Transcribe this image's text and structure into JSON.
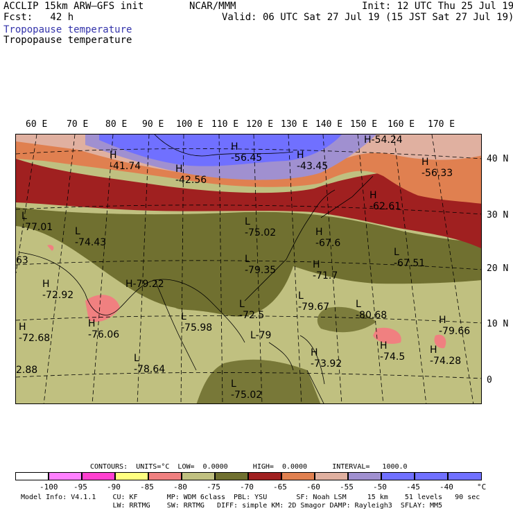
{
  "header": {
    "title_left": "ACCLIP 15km ARW–GFS init",
    "fcst": "Fcst:   42 h",
    "org": "NCAR/MMM",
    "init": "Init: 12 UTC Thu 25 Jul 19",
    "valid": "Valid: 06 UTC Sat 27 Jul 19 (15 JST Sat 27 Jul 19)",
    "field_blue": "Tropopause temperature",
    "field_black": "Tropopause temperature"
  },
  "lon_labels": [
    "60 E",
    "70 E",
    "80 E",
    "90 E",
    "100 E",
    "110 E",
    "120 E",
    "130 E",
    "140 E",
    "150 E",
    "160 E",
    "170 E"
  ],
  "lat_labels": [
    "40 N",
    "30 N",
    "20 N",
    "10 N",
    "0"
  ],
  "colors": {
    "c_100": "#ffffff",
    "c_95": "#ff80ff",
    "c_90": "#ff40d0",
    "c_85": "#ffff80",
    "c_80": "#f08080",
    "c_75": "#c0c080",
    "c_70": "#707030",
    "c_65": "#a02020",
    "c_60": "#e08050",
    "c_55": "#e0b0a0",
    "c_50": "#a090d0",
    "c_45": "#7070ff",
    "c_40": "#7070ff"
  },
  "map_labels": [
    {
      "sym": "H",
      "val": "-56.45"
    },
    {
      "sym": "H",
      "val": "-54.24"
    },
    {
      "sym": "H",
      "val": "-41.74"
    },
    {
      "sym": "H",
      "val": "-42.56"
    },
    {
      "sym": "H",
      "val": "-43.45"
    },
    {
      "sym": "H",
      "val": "-56.33"
    },
    {
      "sym": "H",
      "val": "-62.61"
    },
    {
      "sym": "L",
      "val": "-77.01"
    },
    {
      "sym": "L",
      "val": "-74.43"
    },
    {
      "sym": "L",
      "val": "-75.02"
    },
    {
      "sym": "H",
      "val": "-67.6"
    },
    {
      "sym": "L",
      "val": "-67.51"
    },
    {
      "sym": "L",
      "val": "-79.35"
    },
    {
      "sym": "H",
      "val": "-71.7"
    },
    {
      "sym": "H",
      "val": "-72.92"
    },
    {
      "sym": "H",
      "val": "-79.22"
    },
    {
      "sym": "L",
      "val": "-72.5"
    },
    {
      "sym": "L",
      "val": "-79.67"
    },
    {
      "sym": "L",
      "val": "-80.68"
    },
    {
      "sym": "H",
      "val": "-72.68"
    },
    {
      "sym": "H",
      "val": "-76.06"
    },
    {
      "sym": "L",
      "val": "-75.98"
    },
    {
      "sym": "H",
      "val": "-79.66"
    },
    {
      "sym": "L",
      "val": "-79"
    },
    {
      "sym": "H",
      "val": "-74.5"
    },
    {
      "sym": "H",
      "val": "-74.28"
    },
    {
      "sym": "H",
      "val": "-73.92"
    },
    {
      "sym": "L",
      "val": "-78.64"
    },
    {
      "sym": "",
      "val": "2.88"
    },
    {
      "sym": "L",
      "val": "-75.02"
    },
    {
      "sym": "",
      "val": "63"
    }
  ],
  "contours": {
    "text": "CONTOURS:  UNITS=°C  LOW=  0.0000      HIGH=  0.0000      INTERVAL=   1000.0"
  },
  "colorbar": {
    "labels": [
      "-100",
      "-95",
      "-90",
      "-85",
      "-80",
      "-75",
      "-70",
      "-65",
      "-60",
      "-55",
      "-50",
      "-45",
      "-40"
    ],
    "unit": "°C"
  },
  "footer": {
    "line1": "Model Info: V4.1.1    CU: KF       MP: WDM 6class  PBL: YSU       SF: Noah LSM     15 km    51 levels   90 sec",
    "line2": "                      LW: RRTMG    SW: RRTMG   DIFF: simple KM: 2D Smagor DAMP: Rayleigh3  SFLAY: MM5"
  }
}
